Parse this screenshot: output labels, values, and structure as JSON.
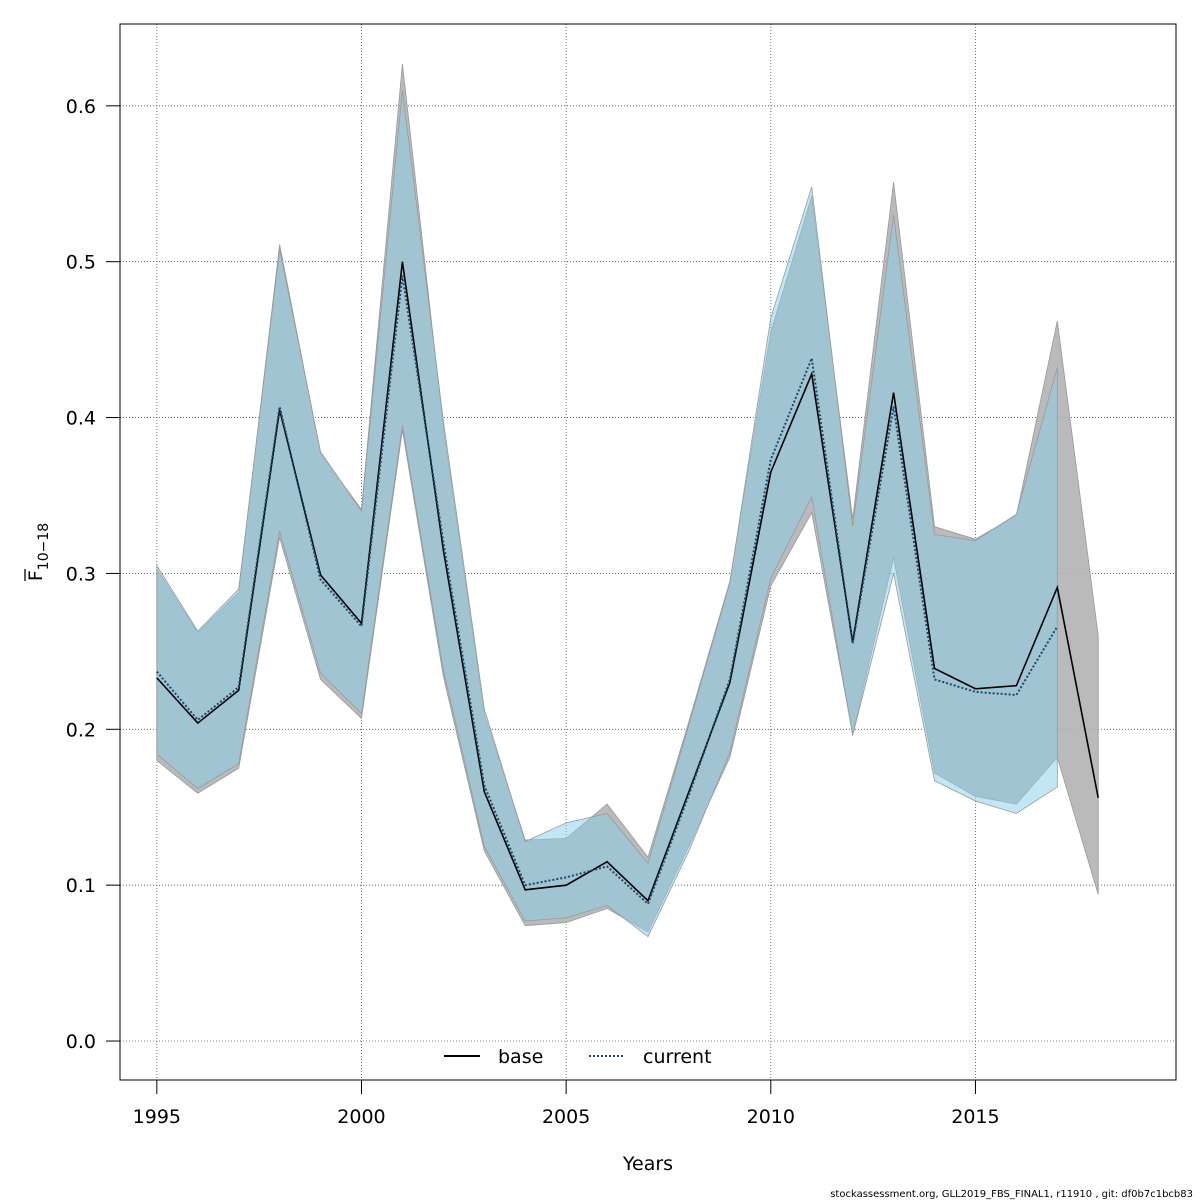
{
  "chart_data": {
    "type": "line",
    "xlabel": "Years",
    "ylabel_main": "F",
    "ylabel_sub": "10−18",
    "xlim": [
      1994.1,
      2019.9
    ],
    "ylim": [
      -0.025,
      0.6525
    ],
    "x_ticks": [
      1995,
      2000,
      2005,
      2010,
      2015
    ],
    "y_ticks": [
      0.0,
      0.1,
      0.2,
      0.3,
      0.4,
      0.5,
      0.6
    ],
    "y_tick_labels": [
      "0.0",
      "0.1",
      "0.2",
      "0.3",
      "0.4",
      "0.5",
      "0.6"
    ],
    "grid": true,
    "legend_position": "bottom-center",
    "series": [
      {
        "name": "base",
        "style": "solid",
        "line_color": "#000000",
        "band_color": "#b3b3b3",
        "x": [
          1995,
          1996,
          1997,
          1998,
          1999,
          2000,
          2001,
          2002,
          2003,
          2004,
          2005,
          2006,
          2007,
          2008,
          2009,
          2010,
          2011,
          2012,
          2013,
          2014,
          2015,
          2016,
          2017,
          2018
        ],
        "values": [
          0.233,
          0.204,
          0.225,
          0.405,
          0.299,
          0.268,
          0.5,
          0.315,
          0.16,
          0.097,
          0.1,
          0.115,
          0.09,
          0.16,
          0.23,
          0.365,
          0.428,
          0.256,
          0.416,
          0.239,
          0.226,
          0.228,
          0.291,
          0.156
        ],
        "upper": [
          0.303,
          0.262,
          0.288,
          0.511,
          0.377,
          0.341,
          0.627,
          0.394,
          0.21,
          0.129,
          0.13,
          0.152,
          0.118,
          0.205,
          0.295,
          0.455,
          0.542,
          0.335,
          0.551,
          0.33,
          0.322,
          0.337,
          0.462,
          0.26
        ],
        "lower": [
          0.18,
          0.159,
          0.175,
          0.323,
          0.232,
          0.207,
          0.392,
          0.234,
          0.122,
          0.074,
          0.076,
          0.085,
          0.07,
          0.125,
          0.182,
          0.292,
          0.339,
          0.197,
          0.31,
          0.172,
          0.157,
          0.152,
          0.182,
          0.094
        ]
      },
      {
        "name": "current",
        "style": "dotted",
        "line_color": "#1a4a6b",
        "band_color": "#87ceeb",
        "x": [
          1995,
          1996,
          1997,
          1998,
          1999,
          2000,
          2001,
          2002,
          2003,
          2004,
          2005,
          2006,
          2007,
          2008,
          2009,
          2010,
          2011,
          2012,
          2013,
          2014,
          2015,
          2016,
          2017
        ],
        "values": [
          0.237,
          0.206,
          0.227,
          0.407,
          0.296,
          0.266,
          0.491,
          0.32,
          0.164,
          0.1,
          0.105,
          0.112,
          0.088,
          0.158,
          0.232,
          0.373,
          0.438,
          0.255,
          0.407,
          0.232,
          0.224,
          0.222,
          0.266
        ],
        "upper": [
          0.305,
          0.263,
          0.29,
          0.508,
          0.378,
          0.34,
          0.61,
          0.398,
          0.213,
          0.128,
          0.14,
          0.146,
          0.114,
          0.203,
          0.294,
          0.464,
          0.548,
          0.33,
          0.53,
          0.325,
          0.321,
          0.338,
          0.432
        ],
        "lower": [
          0.184,
          0.162,
          0.178,
          0.327,
          0.236,
          0.21,
          0.395,
          0.238,
          0.125,
          0.077,
          0.079,
          0.087,
          0.067,
          0.122,
          0.185,
          0.297,
          0.349,
          0.196,
          0.3,
          0.167,
          0.154,
          0.146,
          0.163
        ]
      }
    ]
  },
  "footer_text": "stockassessment.org, GLL2019_FBS_FINAL1, r11910 , git: df0b7c1bcb83"
}
